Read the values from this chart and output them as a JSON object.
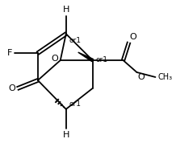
{
  "background": "#ffffff",
  "bond_color": "#000000",
  "text_color": "#000000",
  "figsize": [
    2.18,
    1.78
  ],
  "dpi": 100,
  "xlim": [
    0,
    218
  ],
  "ylim": [
    0,
    178
  ]
}
